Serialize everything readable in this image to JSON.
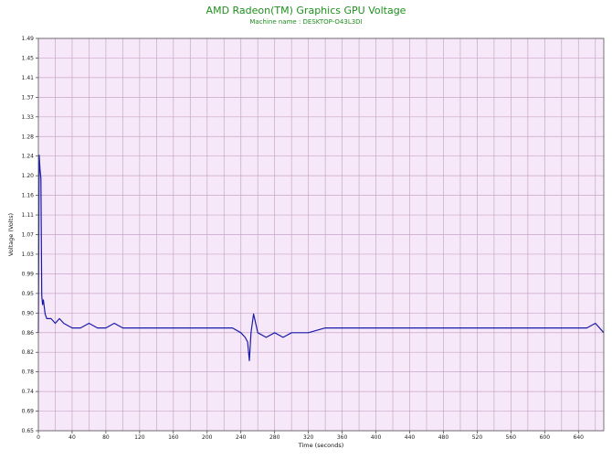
{
  "chart_data": {
    "type": "line",
    "title": "AMD Radeon(TM) Graphics GPU Voltage",
    "subtitle": "Machine name : DESKTOP-O43L3DI",
    "xlabel": "Time (seconds)",
    "ylabel": "Voltage (Volts)",
    "xlim": [
      0,
      670
    ],
    "ylim": [
      0.65,
      1.49
    ],
    "x_ticks": [
      0,
      40,
      80,
      120,
      160,
      200,
      240,
      280,
      320,
      360,
      400,
      440,
      480,
      520,
      560,
      600,
      640
    ],
    "y_ticks": [
      "0.65",
      "0.69",
      "0.74",
      "0.78",
      "0.82",
      "0.86",
      "0.90",
      "0.95",
      "0.99",
      "1.03",
      "1.07",
      "1.11",
      "1.16",
      "1.20",
      "1.24",
      "1.28",
      "1.33",
      "1.37",
      "1.41",
      "1.45",
      "1.49"
    ],
    "grid": true,
    "colors": {
      "line": "#1a1aa8",
      "plot_background": "#f6e8f8",
      "grid": "#c9a6c9",
      "title": "#1f8f1f"
    },
    "series": [
      {
        "x": [
          0,
          1,
          2,
          3,
          4,
          5,
          6,
          8,
          10,
          15,
          20,
          25,
          30,
          40,
          50,
          60,
          70,
          80,
          90,
          100,
          110,
          120,
          130,
          140,
          150,
          160,
          170,
          180,
          190,
          200,
          210,
          220,
          230,
          240,
          245,
          248,
          250,
          252,
          255,
          260,
          270,
          280,
          290,
          300,
          320,
          340,
          360,
          380,
          400,
          420,
          440,
          460,
          480,
          500,
          520,
          540,
          560,
          580,
          600,
          620,
          640,
          650,
          660,
          670
        ],
        "y": [
          0.86,
          1.24,
          1.21,
          1.19,
          0.94,
          0.92,
          0.93,
          0.9,
          0.89,
          0.89,
          0.88,
          0.89,
          0.88,
          0.87,
          0.87,
          0.88,
          0.87,
          0.87,
          0.88,
          0.87,
          0.87,
          0.87,
          0.87,
          0.87,
          0.87,
          0.87,
          0.87,
          0.87,
          0.87,
          0.87,
          0.87,
          0.87,
          0.87,
          0.86,
          0.85,
          0.84,
          0.8,
          0.86,
          0.9,
          0.86,
          0.85,
          0.86,
          0.85,
          0.86,
          0.86,
          0.87,
          0.87,
          0.87,
          0.87,
          0.87,
          0.87,
          0.87,
          0.87,
          0.87,
          0.87,
          0.87,
          0.87,
          0.87,
          0.87,
          0.87,
          0.87,
          0.87,
          0.88,
          0.86
        ]
      }
    ]
  }
}
